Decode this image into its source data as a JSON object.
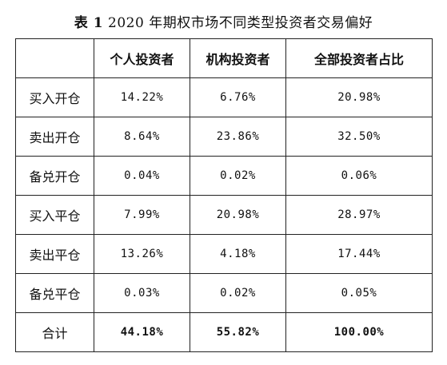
{
  "caption": {
    "label": "表 1",
    "title": "2020 年期权市场不同类型投资者交易偏好"
  },
  "table": {
    "headers": [
      "",
      "个人投资者",
      "机构投资者",
      "全部投资者占比"
    ],
    "rows": [
      {
        "name": "买入开仓",
        "values": [
          "14.22%",
          "6.76%",
          "20.98%"
        ]
      },
      {
        "name": "卖出开仓",
        "values": [
          "8.64%",
          "23.86%",
          "32.50%"
        ]
      },
      {
        "name": "备兑开仓",
        "values": [
          "0.04%",
          "0.02%",
          "0.06%"
        ]
      },
      {
        "name": "买入平仓",
        "values": [
          "7.99%",
          "20.98%",
          "28.97%"
        ]
      },
      {
        "name": "卖出平仓",
        "values": [
          "13.26%",
          "4.18%",
          "17.44%"
        ]
      },
      {
        "name": "备兑平仓",
        "values": [
          "0.03%",
          "0.02%",
          "0.05%"
        ]
      }
    ],
    "total": {
      "name": "合计",
      "values": [
        "44.18%",
        "55.82%",
        "100.00%"
      ]
    }
  }
}
